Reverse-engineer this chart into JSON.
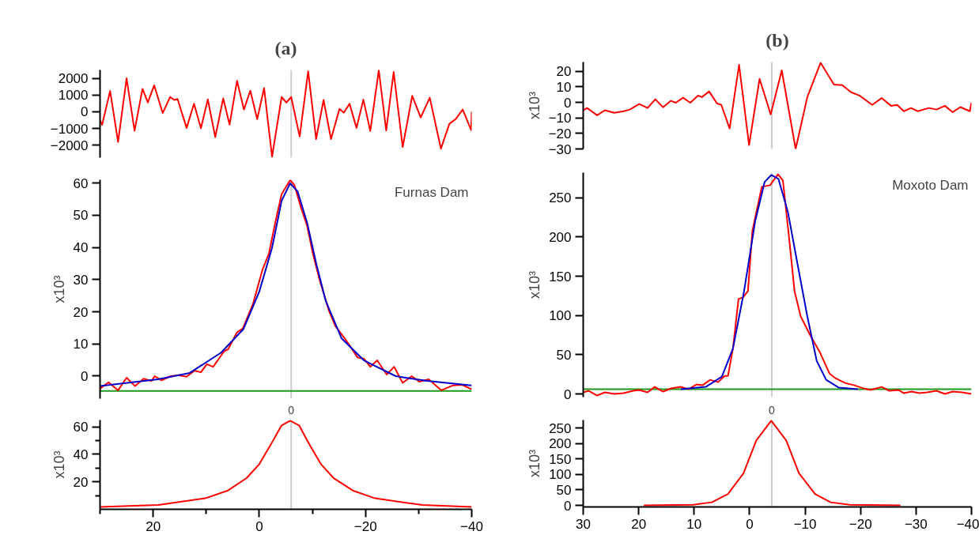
{
  "chart_data": [
    {
      "type": "line",
      "title": "(a)",
      "xlim": [
        30,
        -40
      ],
      "ylim": [
        -2750,
        2500
      ],
      "yticks": [
        -2000,
        -1000,
        0,
        1000,
        2000
      ],
      "tick_labels": "y",
      "ref_lines": [
        {
          "axis": "x",
          "value": -6,
          "color": "#cccccc"
        }
      ],
      "series": [
        {
          "color": "#ff0000",
          "x": [
            30.0,
            29.6,
            28.1,
            26.6,
            25.0,
            23.5,
            22.0,
            21.0,
            19.8,
            18.2,
            16.8,
            16.0,
            15.4,
            13.7,
            12.3,
            11.0,
            9.7,
            8.3,
            6.8,
            5.6,
            4.2,
            2.9,
            1.7,
            0.4,
            -0.9,
            -2.4,
            -4.2,
            -5.1,
            -6.0,
            -7.6,
            -9.2,
            -10.7,
            -12.1,
            -13.5,
            -15.1,
            -15.9,
            -17.0,
            -18.3,
            -19.6,
            -20.9,
            -22.5,
            -23.9,
            -25.3,
            -27.0,
            -28.8,
            -30.4,
            -32.1,
            -34.2,
            -35.8,
            -37.0,
            -38.3,
            -39.9,
            -40.0
          ],
          "values": [
            -530,
            -780,
            1240,
            -1810,
            2000,
            -1140,
            1370,
            550,
            1580,
            -80,
            880,
            700,
            760,
            -970,
            480,
            -990,
            740,
            -1520,
            800,
            -780,
            1850,
            130,
            1260,
            -440,
            1410,
            -2700,
            880,
            550,
            880,
            -1490,
            2420,
            -1640,
            700,
            -1640,
            170,
            -60,
            480,
            -970,
            720,
            -1160,
            2480,
            -1120,
            2380,
            -2110,
            950,
            -340,
            840,
            -2210,
            -720,
            -440,
            130,
            -1100,
            0
          ]
        }
      ]
    },
    {
      "type": "line",
      "title": "(b)",
      "ylabel": "x10³",
      "xlim": [
        30,
        -40
      ],
      "ylim": [
        -30,
        26
      ],
      "yticks": [
        -30,
        -20,
        -10,
        0,
        10,
        20
      ],
      "tick_labels": "y",
      "ref_lines": [
        {
          "axis": "x",
          "value": -4,
          "color": "#cccccc"
        }
      ],
      "series": [
        {
          "color": "#ff0000",
          "x": [
            30,
            29.3,
            27.5,
            26.1,
            24.4,
            22.7,
            21.6,
            19.9,
            18.4,
            17.0,
            15.6,
            14.2,
            13.3,
            12.0,
            10.7,
            9.3,
            8.6,
            7.3,
            5.9,
            5.1,
            3.6,
            1.9,
            0.1,
            -1.8,
            -3.8,
            -5.8,
            -8.3,
            -10.4,
            -12.8,
            -15.2,
            -16.7,
            -18.3,
            -19.8,
            -22.1,
            -23.8,
            -25.5,
            -26.6,
            -27.8,
            -29.1,
            -30.3,
            -32.3,
            -33.7,
            -35.2,
            -36.6,
            -38.0,
            -39.7,
            -40
          ],
          "values": [
            -5.1,
            -3.6,
            -8.3,
            -5.1,
            -6.7,
            -5.7,
            -4.6,
            -1.0,
            -3.6,
            2.0,
            -3.2,
            1.0,
            -0.2,
            3.0,
            -0.2,
            4.4,
            3.4,
            7.1,
            -0.6,
            -1.6,
            -16.8,
            24.2,
            -27.5,
            15.2,
            -7.7,
            20.6,
            -30,
            3.4,
            25.5,
            11.5,
            11.1,
            6.5,
            4.4,
            -1.6,
            2.8,
            -2.2,
            -1.6,
            -5.7,
            -3.6,
            -5.7,
            -3.6,
            -4.6,
            -2.2,
            -6.3,
            -3.0,
            -5.7,
            -0.2
          ]
        }
      ]
    },
    {
      "type": "line",
      "ylabel": "x10³",
      "xlim": [
        30,
        -40
      ],
      "ylim": [
        -7,
        61
      ],
      "yticks": [
        0,
        10,
        20,
        30,
        40,
        50,
        60
      ],
      "tick_labels": "y",
      "annotations": [
        "Furnas Dam"
      ],
      "ref_lines": [
        {
          "axis": "x",
          "value": -6,
          "color": "#cccccc"
        },
        {
          "axis": "y",
          "value": -4.6,
          "color": "#1a9a1a"
        }
      ],
      "series": [
        {
          "color": "#ff0000",
          "x": [
            30,
            28.4,
            26.6,
            25.0,
            23.4,
            21.8,
            20.3,
            19.7,
            18.4,
            16.7,
            15.2,
            13.7,
            12.2,
            11.0,
            9.9,
            8.7,
            6.6,
            5.9,
            4.2,
            3.1,
            1.2,
            -0.6,
            -1.8,
            -3.0,
            -4.2,
            -5.8,
            -6.6,
            -7.8,
            -9.0,
            -10.1,
            -11.3,
            -13.1,
            -14.3,
            -16.1,
            -17.3,
            -18.5,
            -19.7,
            -20.9,
            -22.2,
            -24.0,
            -25.4,
            -27.0,
            -28.7,
            -30.1,
            -31.9,
            -34.3,
            -36.4,
            -38.2,
            -40
          ],
          "values": [
            -3.9,
            -1.9,
            -4.4,
            -0.5,
            -3.1,
            -0.8,
            -1.5,
            0,
            -1.3,
            0,
            0.3,
            -0.2,
            1.7,
            1.2,
            3.7,
            2.9,
            7.8,
            8.3,
            13.6,
            14.8,
            22.4,
            33.1,
            38.0,
            47.7,
            56.5,
            60.9,
            59.4,
            52.6,
            46.7,
            38.0,
            30.2,
            20.4,
            15.6,
            11.7,
            8.8,
            5.8,
            5.4,
            2.9,
            4.9,
            0.5,
            2.9,
            -2.1,
            0,
            -1.7,
            -1.0,
            -4.4,
            -2.9,
            -2.7,
            -4.1
          ]
        },
        {
          "color": "#0000cc",
          "x": [
            30,
            19.1,
            13.1,
            7.2,
            3.0,
            0.0,
            -2.4,
            -4.2,
            -5.8,
            -7.2,
            -9.0,
            -10.7,
            -12.5,
            -15.5,
            -19.7,
            -25.7,
            -31.6,
            -40
          ],
          "values": [
            -3.1,
            -1.0,
            1.0,
            7.3,
            14.6,
            26.3,
            39.9,
            54.5,
            59.9,
            57.4,
            47.7,
            35.1,
            23.4,
            11.7,
            4.9,
            0,
            -1.5,
            -2.9
          ]
        }
      ]
    },
    {
      "type": "line",
      "ylabel": "x10³",
      "xlim": [
        30,
        -40
      ],
      "ylim": [
        -4,
        282
      ],
      "yticks": [
        0,
        50,
        100,
        150,
        200,
        250
      ],
      "tick_labels": "y",
      "annotations": [
        "Moxoto Dam"
      ],
      "ref_lines": [
        {
          "axis": "x",
          "value": -4,
          "color": "#cccccc"
        },
        {
          "axis": "y",
          "value": 6,
          "color": "#1a9a1a"
        }
      ],
      "series": [
        {
          "color": "#ff0000",
          "x": [
            30,
            29.0,
            27.5,
            26.1,
            24.4,
            22.7,
            21.0,
            19.9,
            18.4,
            17.1,
            15.6,
            14.2,
            12.4,
            11.0,
            9.6,
            8.5,
            7.1,
            5.7,
            4.5,
            3.9,
            3.0,
            2.0,
            1.2,
            0.3,
            -0.5,
            -2.2,
            -3.7,
            -5.1,
            -6.0,
            -7.1,
            -8.1,
            -9.2,
            -10.9,
            -12.6,
            -14.4,
            -15.5,
            -17.2,
            -18.9,
            -20.6,
            -21.8,
            -23.8,
            -25.2,
            -26.9,
            -27.8,
            -29.2,
            -30.6,
            -32.0,
            -33.7,
            -35.2,
            -36.6,
            -38.3,
            -40
          ],
          "values": [
            2,
            4,
            -2,
            2,
            0,
            1,
            4,
            5,
            2,
            9,
            3,
            7,
            9,
            6,
            12,
            11,
            18,
            15,
            23,
            23,
            58,
            121,
            123,
            131,
            208,
            264,
            266,
            280,
            272,
            200,
            131,
            99,
            75,
            54,
            26,
            20,
            14,
            11,
            7,
            5,
            9,
            4,
            5,
            1,
            3,
            1,
            2,
            4,
            0,
            3,
            2,
            0
          ]
        },
        {
          "color": "#0000cc",
          "x": [
            12.4,
            7.9,
            5.0,
            3.0,
            1.0,
            -1.0,
            -2.7,
            -3.9,
            -5.2,
            -6.9,
            -8.6,
            -10.4,
            -12.1,
            -13.8,
            -16.1,
            -19.5
          ],
          "values": [
            6,
            9,
            22,
            58,
            131,
            220,
            270,
            279,
            274,
            232,
            167,
            99,
            42,
            18,
            8,
            6
          ]
        }
      ]
    },
    {
      "type": "line",
      "ylabel": "x10³",
      "xlim": [
        30,
        -40
      ],
      "ylim": [
        0,
        65
      ],
      "yticks": [
        {
          "value": 10,
          "label": null
        },
        20,
        {
          "value": 30,
          "label": null
        },
        40,
        {
          "value": 50,
          "label": null
        },
        60
      ],
      "xticks": [
        {
          "value": 30,
          "label": null
        },
        20,
        {
          "value": 10,
          "label": null
        },
        0,
        {
          "value": -10,
          "label": null
        },
        -20,
        {
          "value": -30,
          "label": null
        },
        -40
      ],
      "annotations": [
        "0"
      ],
      "ref_lines": [
        {
          "axis": "x",
          "value": -6,
          "color": "#cccccc"
        }
      ],
      "series": [
        {
          "color": "#ff0000",
          "x": [
            30,
            19.0,
            10.2,
            5.9,
            2.4,
            0,
            -2.4,
            -4.2,
            -5.8,
            -7.5,
            -9.2,
            -11.6,
            -14.0,
            -17.6,
            -21.8,
            -30.7,
            -40
          ],
          "values": [
            1.7,
            3.1,
            8.0,
            13.7,
            22.7,
            32.9,
            48.7,
            61.1,
            64.5,
            61.1,
            48.7,
            32.9,
            22.7,
            13.7,
            8.0,
            3.1,
            1.7
          ]
        }
      ]
    },
    {
      "type": "line",
      "ylabel": "x10³",
      "xlim": [
        30,
        -40
      ],
      "ylim": [
        -5,
        276
      ],
      "yticks": [
        0,
        50,
        100,
        150,
        200,
        250
      ],
      "xticks": [
        30,
        20,
        10,
        0,
        -10,
        -20,
        -30,
        -40
      ],
      "annotations": [
        "0"
      ],
      "ref_lines": [
        {
          "axis": "x",
          "value": -4,
          "color": "#cccccc"
        }
      ],
      "series": [
        {
          "color": "#ff0000",
          "x": [
            19.1,
            10.2,
            6.8,
            3.9,
            1.1,
            -1.2,
            -3.9,
            -6.6,
            -8.9,
            -11.8,
            -14.6,
            -18.1,
            -27.2
          ],
          "values": [
            0,
            2,
            10,
            37,
            104,
            210,
            274,
            210,
            104,
            37,
            10,
            2,
            0
          ]
        }
      ]
    }
  ]
}
